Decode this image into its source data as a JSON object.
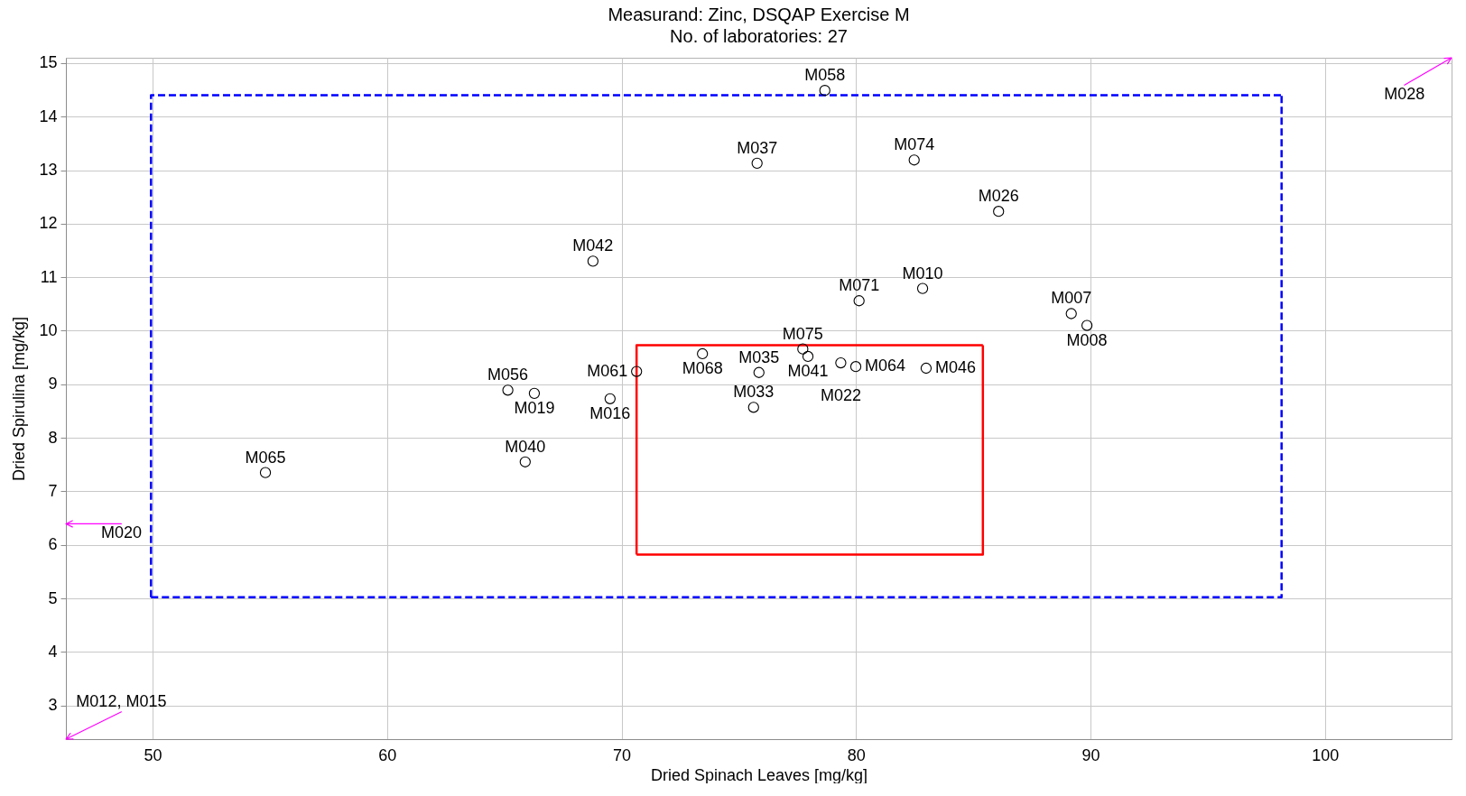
{
  "chart_data": {
    "type": "scatter",
    "title": "Measurand: Zinc, DSQAP Exercise M",
    "subtitle": "No. of laboratories: 27",
    "xlabel": "Dried Spinach Leaves [mg/kg]",
    "ylabel": "Dried Spirulina [mg/kg]",
    "xlim": [
      46.3,
      105.4
    ],
    "xticks": [
      50,
      60,
      70,
      80,
      90,
      100
    ],
    "ylim": [
      2.37,
      15.1
    ],
    "yticks": [
      3,
      4,
      5,
      6,
      7,
      8,
      9,
      10,
      11,
      12,
      13,
      14,
      15
    ],
    "grid": true,
    "marker": "circle",
    "series": [
      {
        "type": "line",
        "color": "#0000ff",
        "line_style": "dashed",
        "marker": "none",
        "x": [
          49.93,
          98.15,
          98.15
        ],
        "values": [
          5.02,
          5.02,
          14.4
        ]
      },
      {
        "type": "line",
        "color": "#0000ff",
        "line_style": "dashed",
        "marker": "none",
        "x": [
          49.93,
          49.93,
          98.15
        ],
        "values": [
          5.02,
          14.4,
          14.4
        ]
      },
      {
        "type": "line",
        "color": "#ff0000",
        "line_style": "solid",
        "marker": "none",
        "x": [
          70.64,
          85.41,
          85.41
        ],
        "values": [
          5.82,
          5.82,
          9.73
        ]
      },
      {
        "type": "line",
        "color": "#ff0000",
        "line_style": "solid",
        "marker": "none",
        "x": [
          70.64,
          70.64,
          85.41
        ],
        "values": [
          5.82,
          9.73,
          9.73
        ]
      },
      {
        "color": "#000000",
        "x": [
          78.67,
          75.78,
          82.48,
          86.08,
          68.78,
          82.84,
          80.13,
          89.18,
          89.85,
          73.45,
          77.73,
          77.95,
          79.35,
          79.99,
          82.99,
          70.64,
          75.86,
          65.15,
          66.28,
          69.51,
          75.63,
          65.89,
          54.81
        ],
        "values": [
          14.49,
          13.13,
          13.19,
          12.23,
          11.3,
          10.79,
          10.56,
          10.32,
          10.1,
          9.57,
          9.66,
          9.52,
          9.4,
          9.33,
          9.3,
          9.24,
          9.22,
          8.89,
          8.83,
          8.73,
          8.57,
          7.55,
          7.35
        ],
        "value_labels": [
          "M058",
          "M037",
          "M074",
          "M026",
          "M042",
          "M010",
          "M071",
          "M007",
          "M008",
          "M068",
          "M075",
          "M041",
          "M022",
          "M064",
          "M046",
          "M061",
          "M035",
          "M056",
          "M019",
          "M016",
          "M033",
          "M040",
          "M065"
        ]
      }
    ],
    "annotations": [
      "M028",
      "M020",
      "M012, M015"
    ]
  }
}
